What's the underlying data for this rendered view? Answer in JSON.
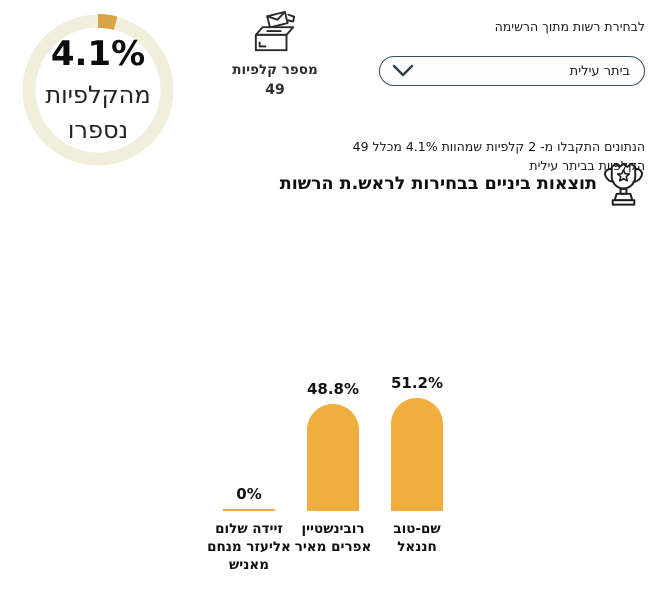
{
  "header": {
    "select_label": "לבחירת רשות מתוך הרשימה",
    "dropdown": {
      "value": "ביתר עילית"
    },
    "stations": {
      "label": "מספר קלפיות",
      "value": "49"
    },
    "counted": {
      "percent": "4.1%",
      "caption_line1": "מהקלפיות",
      "caption_line2": "נספרו",
      "fraction": 0.041
    }
  },
  "summary": {
    "text": "הנתונים התקבלו מ- 2 קלפיות שמהוות 4.1% מכלל 49 הקלפיות בביתר עילית",
    "title": "תוצאות ביניים בבחירות לראש.ת הרשות"
  },
  "chart_data": {
    "type": "bar",
    "categories": [
      "שם-טוב חננאל",
      "רובינשטיין אפרים מאיר",
      "זיידה שלום אליעזר מנחם מאניש"
    ],
    "values": [
      51.2,
      48.8,
      0
    ],
    "value_labels": [
      "51.2%",
      "48.8%",
      "0%"
    ],
    "ylim": [
      0,
      100
    ],
    "orientation": "vertical",
    "value_label_position": "above",
    "bar_color": "#F0AE3E",
    "grid": false,
    "legend": false
  },
  "colors": {
    "bar": "#F0AE3E",
    "ring_track": "#F2EEDC",
    "ring_progress_top": "#2E3E4C",
    "ring_progress_bottom": "#D9A445",
    "dropdown_border": "#3C4B55",
    "icon_stroke": "#2B2B2B",
    "text": "#1A1A1A"
  },
  "icons": {
    "dropdown": "chevron-down",
    "stations": "ballot-box",
    "title": "trophy"
  }
}
